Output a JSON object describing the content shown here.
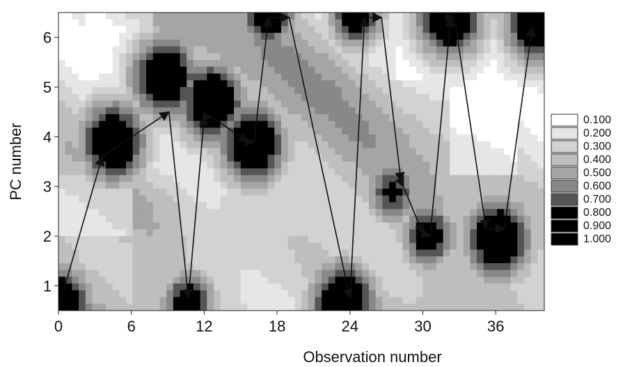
{
  "chart_data": {
    "type": "heatmap",
    "subtype": "filled-contour-with-arrow-path",
    "title": "",
    "xlabel": "Observation number",
    "ylabel": "PC number",
    "xlim": [
      0,
      40
    ],
    "ylim": [
      0.5,
      6.5
    ],
    "x_ticks": [
      0,
      6,
      12,
      18,
      24,
      30,
      36
    ],
    "y_ticks": [
      1,
      2,
      3,
      4,
      5,
      6
    ],
    "legend_position": "right",
    "legend": [
      {
        "label": "0.100",
        "color": "#ffffff"
      },
      {
        "label": "0.200",
        "color": "#e6e6e6"
      },
      {
        "label": "0.300",
        "color": "#d2d2d2"
      },
      {
        "label": "0.400",
        "color": "#bebebe"
      },
      {
        "label": "0.500",
        "color": "#a5a5a5"
      },
      {
        "label": "0.600",
        "color": "#888888"
      },
      {
        "label": "0.700",
        "color": "#555555"
      },
      {
        "label": "0.800",
        "color": "#000000"
      },
      {
        "label": "0.900",
        "color": "#000000"
      },
      {
        "label": "1.000",
        "color": "#000000"
      }
    ],
    "peaks": [
      {
        "x": 0,
        "y": 0.6,
        "value": 1.0
      },
      {
        "x": 4.5,
        "y": 3.9,
        "value": 1.0
      },
      {
        "x": 8.7,
        "y": 5.2,
        "value": 1.0
      },
      {
        "x": 10.7,
        "y": 0.65,
        "value": 0.9
      },
      {
        "x": 12.6,
        "y": 4.7,
        "value": 1.0
      },
      {
        "x": 16,
        "y": 3.85,
        "value": 1.0
      },
      {
        "x": 17.3,
        "y": 6.45,
        "value": 0.95
      },
      {
        "x": 23.5,
        "y": 0.65,
        "value": 1.0
      },
      {
        "x": 24.5,
        "y": 6.45,
        "value": 0.9
      },
      {
        "x": 27.5,
        "y": 2.9,
        "value": 0.8
      },
      {
        "x": 30.5,
        "y": 2.0,
        "value": 0.9
      },
      {
        "x": 32.2,
        "y": 6.4,
        "value": 1.0
      },
      {
        "x": 36.2,
        "y": 1.95,
        "value": 1.0
      },
      {
        "x": 39.5,
        "y": 6.3,
        "value": 1.0
      }
    ],
    "path": [
      [
        0,
        0.55
      ],
      [
        3.6,
        3.6
      ],
      [
        9.1,
        4.5
      ],
      [
        10.7,
        0.75
      ],
      [
        12.0,
        4.4
      ],
      [
        12.6,
        4.4
      ],
      [
        15.6,
        3.9
      ],
      [
        16.1,
        3.9
      ],
      [
        17.3,
        6.4
      ],
      [
        19.0,
        6.4
      ],
      [
        24.0,
        0.75
      ],
      [
        25.2,
        6.4
      ],
      [
        26.6,
        6.4
      ],
      [
        28.2,
        3.1
      ],
      [
        28.4,
        3.0
      ],
      [
        30.0,
        2.05
      ],
      [
        30.6,
        2.0
      ],
      [
        32.3,
        6.4
      ],
      [
        32.6,
        6.4
      ],
      [
        35.2,
        2.15
      ],
      [
        36.7,
        2.15
      ],
      [
        39.0,
        6.2
      ]
    ]
  }
}
